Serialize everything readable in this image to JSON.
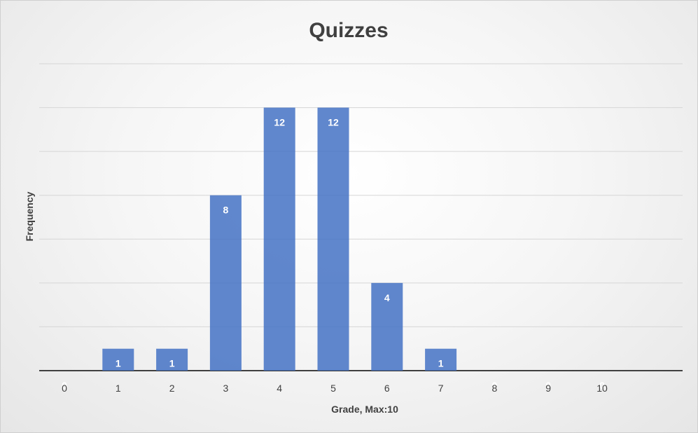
{
  "chart_data": {
    "type": "bar",
    "title": "Quizzes",
    "xlabel": "Grade, Max:10",
    "ylabel": "Frequency",
    "categories": [
      "0",
      "1",
      "2",
      "3",
      "4",
      "5",
      "6",
      "7",
      "8",
      "9",
      "10"
    ],
    "values": [
      0,
      1,
      1,
      8,
      12,
      12,
      4,
      1,
      0,
      0,
      0
    ],
    "ylim": [
      0,
      14
    ],
    "grid": true,
    "legend": "none",
    "bar_color": "#4472c4",
    "data_label_color": "#ffffff"
  }
}
